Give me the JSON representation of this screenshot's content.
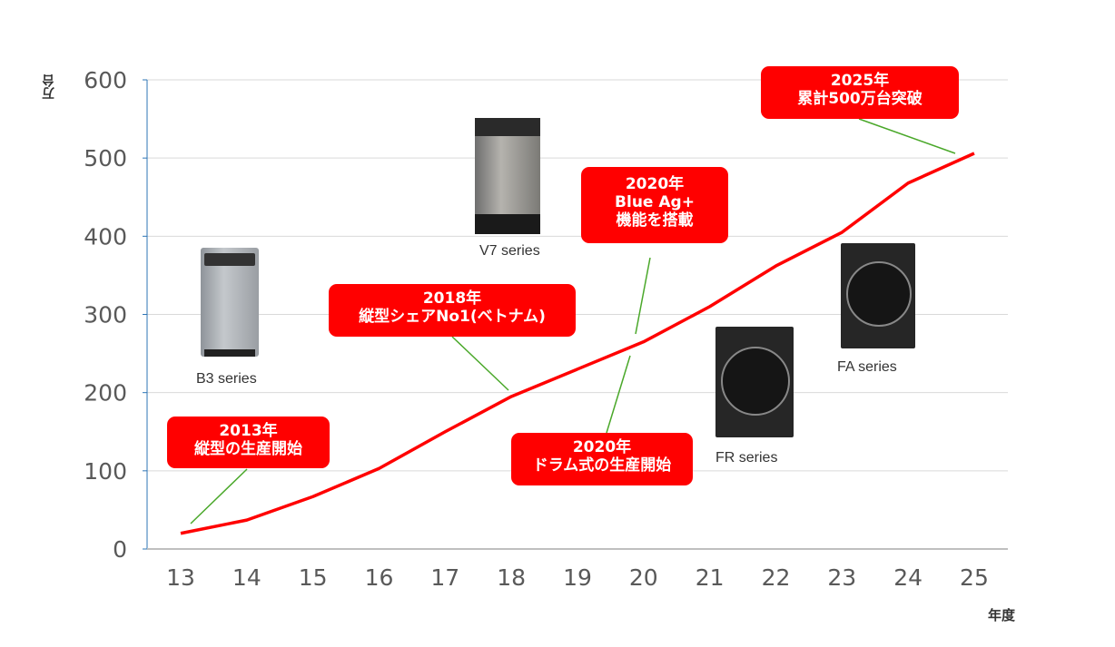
{
  "chart_data": {
    "type": "line",
    "xlabel": "年度",
    "ylabel": "万台",
    "categories": [
      "13",
      "14",
      "15",
      "16",
      "17",
      "18",
      "19",
      "20",
      "21",
      "22",
      "23",
      "24",
      "25"
    ],
    "series": [
      {
        "values": [
          20,
          37,
          67,
          103,
          150,
          195,
          230,
          265,
          310,
          362,
          405,
          468,
          506
        ],
        "color": "#ff0000"
      }
    ],
    "ylim": [
      0,
      600
    ],
    "yticks": [
      "0",
      "100",
      "200",
      "300",
      "400",
      "500",
      "600"
    ],
    "grid": true,
    "annotations": [
      {
        "lines": [
          "2013年",
          "縦型の生産開始"
        ],
        "x": "13"
      },
      {
        "lines": [
          "2018年",
          "縦型シェアNo1(ベトナム)"
        ],
        "x": "18"
      },
      {
        "lines": [
          "2020年",
          "ドラム式の生産開始"
        ],
        "x": "20"
      },
      {
        "lines": [
          "2020年",
          "Blue Ag+",
          "機能を搭載"
        ],
        "x": "20"
      },
      {
        "lines": [
          "2025年",
          "累計500万台突破"
        ],
        "x": "25"
      }
    ],
    "products": [
      "B3 series",
      "V7 series",
      "FR series",
      "FA series"
    ],
    "colors": {
      "line": "#ff0000",
      "leader": "#4aa82a",
      "callout": "#ff0000",
      "grid": "#d9d9d9"
    }
  }
}
